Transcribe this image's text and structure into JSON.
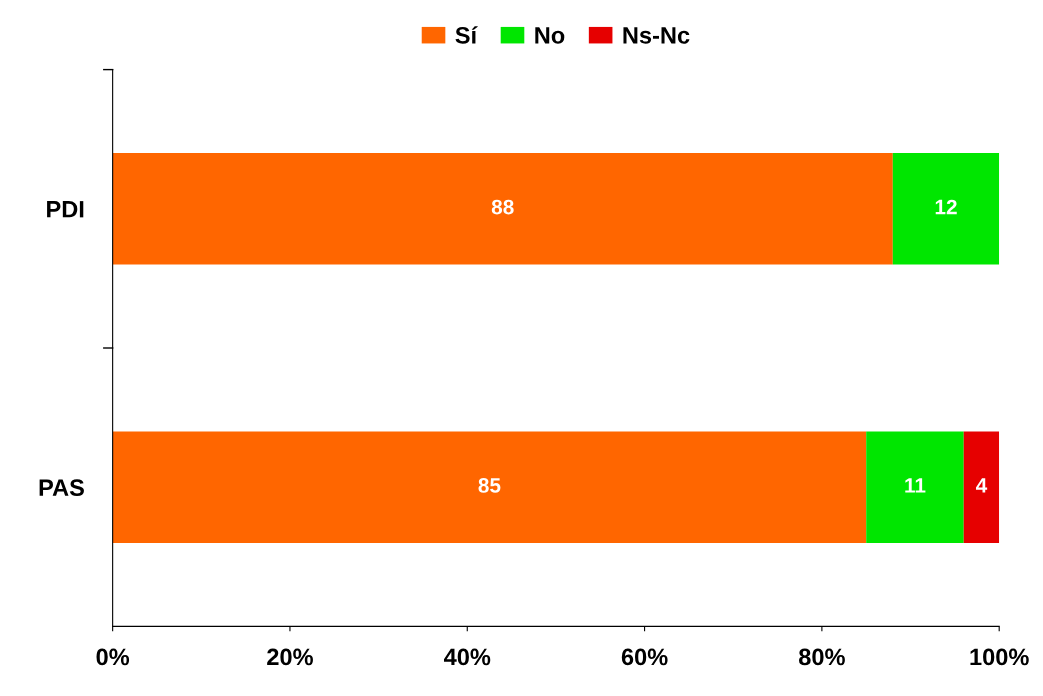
{
  "chart_data": {
    "type": "bar",
    "orientation": "horizontal",
    "stacked": true,
    "categories": [
      "PDI",
      "PAS"
    ],
    "series": [
      {
        "name": "Sí",
        "color": "#ff6600",
        "values": [
          88,
          85
        ]
      },
      {
        "name": "No",
        "color": "#00e600",
        "values": [
          12,
          11
        ]
      },
      {
        "name": "Ns-Nc",
        "color": "#e60000",
        "values": [
          null,
          4
        ]
      }
    ],
    "xlim": [
      0,
      100
    ],
    "xticks": [
      {
        "value": 0,
        "label": "0%"
      },
      {
        "value": 20,
        "label": "20%"
      },
      {
        "value": 40,
        "label": "40%"
      },
      {
        "value": 60,
        "label": "60%"
      },
      {
        "value": 80,
        "label": "80%"
      },
      {
        "value": 100,
        "label": "100%"
      }
    ],
    "data_labels": true,
    "legend": "top",
    "grid": false
  }
}
